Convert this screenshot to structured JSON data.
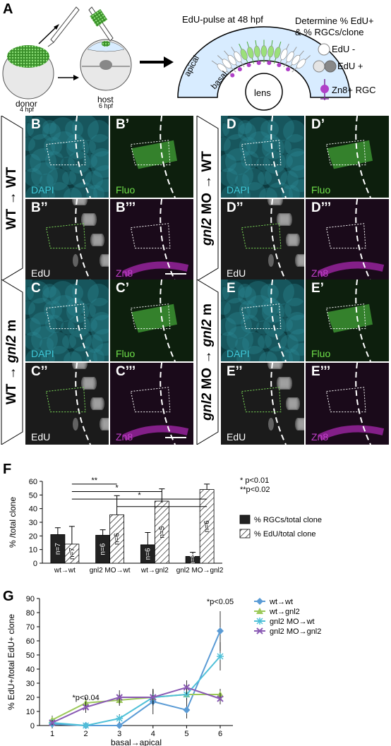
{
  "panelA": {
    "letter": "A",
    "donor_label": "donor",
    "donor_time": "4 hpf",
    "host_label": "host",
    "host_time": "6 hpf",
    "edu_pulse_title": "EdU-pulse at 48 hpf",
    "apical_label": "apical",
    "basal_label": "basal",
    "lens_label": "lens",
    "determine_line1": "Determine % EdU+",
    "determine_line2": "& % RGCs/clone",
    "legend_edu_minus": "EdU -",
    "legend_edu_plus": "EdU +",
    "legend_zn8": "Zn8+ RGC"
  },
  "micrographs": {
    "rows": [
      {
        "tag_parts": [
          "WT → WT"
        ],
        "panels": [
          {
            "letter": "B",
            "stain": "DAPI",
            "stain_color": "#3fc8d8"
          },
          {
            "letter": "B’",
            "stain": "Fluo",
            "stain_color": "#6fe04a"
          },
          {
            "letter": "B’’",
            "stain": "EdU",
            "stain_color": "#ffffff"
          },
          {
            "letter": "B’’’",
            "stain": "Zn8",
            "stain_color": "#c040c8"
          }
        ]
      },
      {
        "tag_parts": [
          "gnl2",
          " MO → WT"
        ],
        "panels": [
          {
            "letter": "D",
            "stain": "DAPI",
            "stain_color": "#3fc8d8"
          },
          {
            "letter": "D’",
            "stain": "Fluo",
            "stain_color": "#6fe04a"
          },
          {
            "letter": "D’’",
            "stain": "EdU",
            "stain_color": "#ffffff"
          },
          {
            "letter": "D’’’",
            "stain": "Zn8",
            "stain_color": "#c040c8"
          }
        ]
      },
      {
        "tag_parts": [
          "WT → ",
          "gnl2",
          " m"
        ],
        "panels": [
          {
            "letter": "C",
            "stain": "DAPI",
            "stain_color": "#3fc8d8"
          },
          {
            "letter": "C’",
            "stain": "Fluo",
            "stain_color": "#6fe04a"
          },
          {
            "letter": "C’’",
            "stain": "EdU",
            "stain_color": "#ffffff"
          },
          {
            "letter": "C’’’",
            "stain": "Zn8",
            "stain_color": "#c040c8"
          }
        ]
      },
      {
        "tag_parts": [
          "gnl2",
          " MO → ",
          "gnl2",
          " m"
        ],
        "panels": [
          {
            "letter": "E",
            "stain": "DAPI",
            "stain_color": "#3fc8d8"
          },
          {
            "letter": "E’",
            "stain": "Fluo",
            "stain_color": "#6fe04a"
          },
          {
            "letter": "E’’",
            "stain": "EdU",
            "stain_color": "#ffffff"
          },
          {
            "letter": "E’’’",
            "stain": "Zn8",
            "stain_color": "#c040c8"
          }
        ]
      }
    ]
  },
  "chart_data": [
    {
      "panel": "F",
      "type": "bar",
      "ylabel": "% /total clone",
      "ylim": [
        0,
        60
      ],
      "yticks": [
        0,
        10,
        20,
        30,
        40,
        50,
        60
      ],
      "categories": [
        "wt→wt",
        "gnl2 MO→wt",
        "wt→gnl2",
        "gnl2 MO→gnl2"
      ],
      "series": [
        {
          "name": "% RGCs/total clone",
          "values": [
            21,
            20.5,
            13.5,
            5
          ],
          "errors": [
            5,
            4,
            9,
            3
          ],
          "n_labels": [
            "n=7",
            "n=6",
            "n=6",
            "n=6"
          ],
          "color": "#222222"
        },
        {
          "name": "% EdU/total clone",
          "values": [
            14,
            35.5,
            45.5,
            54
          ],
          "errors": [
            13,
            14,
            9,
            4
          ],
          "n_labels": [
            "n=7",
            "n=6",
            "n=5",
            "n=6"
          ],
          "color": "hatch"
        }
      ],
      "significance": [
        {
          "from": 0,
          "to": 1,
          "label": "**"
        },
        {
          "from": 0,
          "to": 2,
          "label": "*"
        },
        {
          "from": 0,
          "to": 3,
          "label": "*"
        },
        {
          "from": 1,
          "to": 3,
          "label": "*"
        }
      ],
      "sig_legend": [
        "* p<0.01",
        "**p<0.02"
      ],
      "legend_position": "right"
    },
    {
      "panel": "G",
      "type": "line",
      "ylabel": "% EdU+/total EdU+ clone",
      "xlabel": "basal→apical",
      "x": [
        1,
        2,
        3,
        4,
        5,
        6
      ],
      "ylim": [
        0,
        90
      ],
      "yticks": [
        0,
        10,
        20,
        30,
        40,
        50,
        60,
        70,
        80,
        90
      ],
      "series": [
        {
          "name": "wt→wt",
          "values": [
            1,
            0,
            0,
            17,
            11,
            67
          ],
          "errors": [
            3,
            2,
            4,
            9,
            6,
            14
          ],
          "color": "#5a9bd5",
          "marker": "diamond"
        },
        {
          "name": "wt→gnl2",
          "values": [
            4,
            16,
            18,
            20,
            22,
            22
          ],
          "errors": [
            3,
            4,
            4,
            5,
            4,
            4
          ],
          "color": "#9cc95a",
          "marker": "triangle"
        },
        {
          "name": "gnl2 MO→wt",
          "values": [
            2,
            0,
            5,
            20,
            22,
            49
          ],
          "errors": [
            2,
            1,
            3,
            5,
            5,
            10
          ],
          "color": "#4fc0d8",
          "marker": "star"
        },
        {
          "name": "gnl2 MO→gnl2",
          "values": [
            2,
            13,
            20,
            20,
            27,
            19
          ],
          "errors": [
            2,
            4,
            5,
            6,
            5,
            4
          ],
          "color": "#8a5ab4",
          "marker": "x"
        }
      ],
      "annotations": [
        {
          "x": 2,
          "y": 18,
          "text": "*p<0.04"
        },
        {
          "x": 6,
          "y": 86,
          "text": "*p<0.05"
        }
      ],
      "legend_position": "right"
    }
  ]
}
